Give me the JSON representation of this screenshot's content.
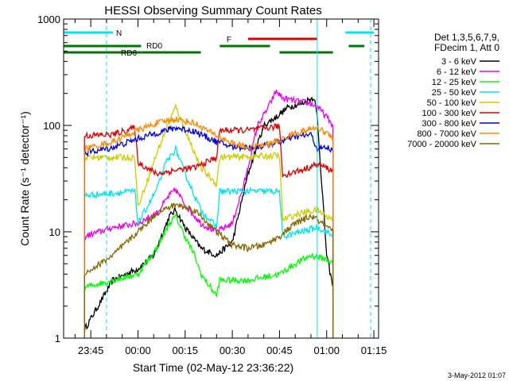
{
  "chart_data": {
    "type": "line",
    "title": "HESSI Observing Summary Count Rates",
    "xlabel": "Start Time (02-May-12 23:36:22)",
    "ylabel": "Count Rate (s⁻¹ detector⁻¹)",
    "y_scale": "log",
    "ylim": [
      1,
      1000
    ],
    "xlim": [
      "23:36:22",
      "01:16:30"
    ],
    "x_ticks": [
      "23:45",
      "00:00",
      "00:15",
      "00:30",
      "00:45",
      "01:00",
      "01:15"
    ],
    "y_ticks": [
      "1",
      "10",
      "100",
      "1000"
    ],
    "timestamp": "3-May-2012 01:07",
    "legend": {
      "placement": "right",
      "header": [
        "Det 1,3,5,6,7,9,",
        "FDecim 1, Att 0"
      ]
    },
    "flags": [
      {
        "label": "N",
        "color": "#00e5ee",
        "segments": [
          [
            "23:36",
            "23:52"
          ],
          [
            "01:06",
            "01:15"
          ]
        ]
      },
      {
        "label": "F",
        "color": "#dd0000",
        "segments": [
          [
            "00:35",
            "00:57"
          ]
        ]
      },
      {
        "label": "RD0",
        "color": "#007700",
        "segments": [
          [
            "23:36",
            "00:01"
          ],
          [
            "00:26",
            "00:42"
          ],
          [
            "01:07",
            "01:12"
          ]
        ]
      },
      {
        "label": "RD6",
        "color": "#007700",
        "segments": [
          [
            "23:36",
            "00:01"
          ],
          [
            "00:01",
            "00:20"
          ],
          [
            "00:45",
            "01:02"
          ]
        ]
      }
    ],
    "vlines": [
      {
        "time": "23:50",
        "color": "#00e5ee",
        "style": "dashed"
      },
      {
        "time": "00:57",
        "color": "#00e5ee",
        "style": "solid"
      },
      {
        "time": "01:14",
        "color": "#00e5ee",
        "style": "dashed"
      }
    ],
    "series": [
      {
        "name": "3 - 6 keV",
        "color": "#000000",
        "points": [
          [
            "23:43",
            1.2
          ],
          [
            "23:52",
            3.5
          ],
          [
            "00:00",
            4.5
          ],
          [
            "00:05",
            6
          ],
          [
            "00:10",
            14
          ],
          [
            "00:12",
            16
          ],
          [
            "00:15",
            11
          ],
          [
            "00:20",
            7
          ],
          [
            "00:25",
            6
          ],
          [
            "00:30",
            8
          ],
          [
            "00:35",
            35
          ],
          [
            "00:40",
            100
          ],
          [
            "00:44",
            120
          ],
          [
            "00:48",
            150
          ],
          [
            "00:52",
            160
          ],
          [
            "00:56",
            185
          ],
          [
            "00:57",
            120
          ],
          [
            "01:00",
            6
          ],
          [
            "01:02",
            3
          ]
        ]
      },
      {
        "name": "6 - 12 keV",
        "color": "#ee00ee",
        "points": [
          [
            "23:43",
            9
          ],
          [
            "23:52",
            11
          ],
          [
            "00:00",
            12
          ],
          [
            "00:06",
            15
          ],
          [
            "00:10",
            22
          ],
          [
            "00:12",
            25
          ],
          [
            "00:15",
            18
          ],
          [
            "00:20",
            12
          ],
          [
            "00:25",
            10
          ],
          [
            "00:30",
            12
          ],
          [
            "00:34",
            30
          ],
          [
            "00:38",
            100
          ],
          [
            "00:41",
            140
          ],
          [
            "00:44",
            210
          ],
          [
            "00:46",
            180
          ],
          [
            "00:50",
            170
          ],
          [
            "00:55",
            160
          ],
          [
            "00:57",
            150
          ],
          [
            "01:00",
            120
          ],
          [
            "01:02",
            100
          ]
        ]
      },
      {
        "name": "12 - 25 keV",
        "color": "#00ff00",
        "points": [
          [
            "23:43",
            3
          ],
          [
            "23:52",
            3.5
          ],
          [
            "00:00",
            4
          ],
          [
            "00:06",
            7
          ],
          [
            "00:10",
            12
          ],
          [
            "00:12",
            14
          ],
          [
            "00:15",
            9
          ],
          [
            "00:18",
            6
          ],
          [
            "00:20",
            4
          ],
          [
            "00:25",
            2.5
          ],
          [
            "00:26",
            3.5
          ],
          [
            "00:35",
            3.5
          ],
          [
            "00:45",
            4
          ],
          [
            "00:50",
            5
          ],
          [
            "00:55",
            6
          ],
          [
            "01:00",
            5.5
          ],
          [
            "01:02",
            5
          ]
        ]
      },
      {
        "name": "25 - 50 keV",
        "color": "#00e5ee",
        "points": [
          [
            "23:43",
            22
          ],
          [
            "23:52",
            23
          ],
          [
            "23:59",
            24
          ],
          [
            "00:00",
            12
          ],
          [
            "00:06",
            25
          ],
          [
            "00:09",
            45
          ],
          [
            "00:12",
            60
          ],
          [
            "00:15",
            35
          ],
          [
            "00:20",
            16
          ],
          [
            "00:25",
            11
          ],
          [
            "00:26",
            24
          ],
          [
            "00:35",
            24
          ],
          [
            "00:45",
            24
          ],
          [
            "00:46",
            9
          ],
          [
            "00:52",
            10
          ],
          [
            "00:57",
            11
          ],
          [
            "01:00",
            10
          ],
          [
            "01:02",
            9
          ]
        ]
      },
      {
        "name": "50 - 100 keV",
        "color": "#cccc00",
        "points": [
          [
            "23:43",
            50
          ],
          [
            "23:59",
            50
          ],
          [
            "00:00",
            17
          ],
          [
            "00:06",
            55
          ],
          [
            "00:10",
            110
          ],
          [
            "00:12",
            150
          ],
          [
            "00:15",
            90
          ],
          [
            "00:20",
            40
          ],
          [
            "00:25",
            28
          ],
          [
            "00:26",
            50
          ],
          [
            "00:45",
            52
          ],
          [
            "00:46",
            13
          ],
          [
            "00:52",
            15
          ],
          [
            "00:57",
            16
          ],
          [
            "01:00",
            14
          ],
          [
            "01:02",
            13
          ]
        ]
      },
      {
        "name": "100 - 300 keV",
        "color": "#dd0000",
        "points": [
          [
            "23:43",
            80
          ],
          [
            "23:52",
            82
          ],
          [
            "23:59",
            95
          ],
          [
            "00:00",
            45
          ],
          [
            "00:06",
            35
          ],
          [
            "00:12",
            38
          ],
          [
            "00:18",
            40
          ],
          [
            "00:25",
            50
          ],
          [
            "00:26",
            90
          ],
          [
            "00:35",
            90
          ],
          [
            "00:45",
            98
          ],
          [
            "00:46",
            34
          ],
          [
            "00:52",
            38
          ],
          [
            "00:57",
            43
          ],
          [
            "01:00",
            40
          ],
          [
            "01:02",
            37
          ]
        ]
      },
      {
        "name": "300 - 800 keV",
        "color": "#0000dd",
        "points": [
          [
            "23:43",
            55
          ],
          [
            "23:52",
            62
          ],
          [
            "00:00",
            75
          ],
          [
            "00:06",
            85
          ],
          [
            "00:12",
            95
          ],
          [
            "00:18",
            88
          ],
          [
            "00:25",
            70
          ],
          [
            "00:30",
            63
          ],
          [
            "00:35",
            62
          ],
          [
            "00:40",
            64
          ],
          [
            "00:45",
            70
          ],
          [
            "00:50",
            78
          ],
          [
            "00:55",
            82
          ],
          [
            "00:57",
            60
          ],
          [
            "01:00",
            62
          ],
          [
            "01:02",
            58
          ]
        ]
      },
      {
        "name": "800 - 7000 keV",
        "color": "#ff8800",
        "points": [
          [
            "23:43",
            60
          ],
          [
            "23:52",
            70
          ],
          [
            "00:00",
            90
          ],
          [
            "00:06",
            105
          ],
          [
            "00:12",
            115
          ],
          [
            "00:18",
            105
          ],
          [
            "00:25",
            80
          ],
          [
            "00:30",
            68
          ],
          [
            "00:35",
            62
          ],
          [
            "00:40",
            65
          ],
          [
            "00:45",
            72
          ],
          [
            "00:50",
            85
          ],
          [
            "00:55",
            92
          ],
          [
            "00:57",
            95
          ],
          [
            "01:00",
            85
          ],
          [
            "01:02",
            78
          ]
        ]
      },
      {
        "name": "7000 - 20000 keV",
        "color": "#886600",
        "points": [
          [
            "23:43",
            4
          ],
          [
            "23:52",
            6
          ],
          [
            "00:00",
            10
          ],
          [
            "00:06",
            15
          ],
          [
            "00:12",
            18
          ],
          [
            "00:18",
            16
          ],
          [
            "00:25",
            10
          ],
          [
            "00:30",
            7.5
          ],
          [
            "00:35",
            7
          ],
          [
            "00:40",
            7.5
          ],
          [
            "00:45",
            9
          ],
          [
            "00:50",
            12
          ],
          [
            "00:55",
            14
          ],
          [
            "00:57",
            13
          ],
          [
            "01:00",
            11
          ],
          [
            "01:02",
            10
          ]
        ]
      }
    ]
  }
}
